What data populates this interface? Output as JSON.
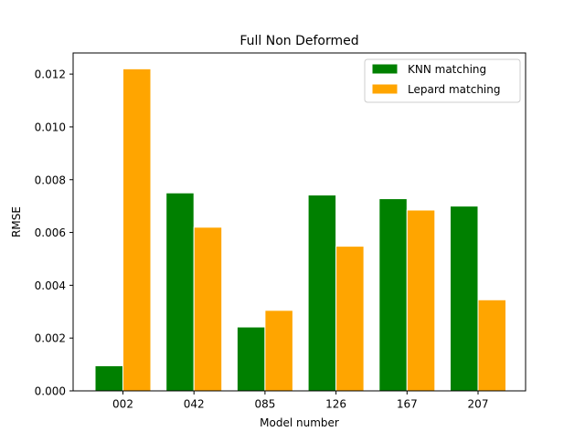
{
  "chart_data": {
    "type": "bar",
    "title": "Full Non Deformed",
    "xlabel": "Model number",
    "ylabel": "RMSE",
    "categories": [
      "002",
      "042",
      "085",
      "126",
      "167",
      "207"
    ],
    "series": [
      {
        "name": "KNN matching",
        "color": "#008000",
        "values": [
          0.00095,
          0.0075,
          0.00242,
          0.00742,
          0.00728,
          0.007
        ]
      },
      {
        "name": "Lepard matching",
        "color": "#ffa500",
        "values": [
          0.0122,
          0.0062,
          0.00305,
          0.00548,
          0.00685,
          0.00345
        ]
      }
    ],
    "ylim": [
      0,
      0.0128
    ],
    "yticks": [
      "0.000",
      "0.002",
      "0.004",
      "0.006",
      "0.008",
      "0.010",
      "0.012"
    ],
    "legend": "top-right",
    "grid": false
  }
}
